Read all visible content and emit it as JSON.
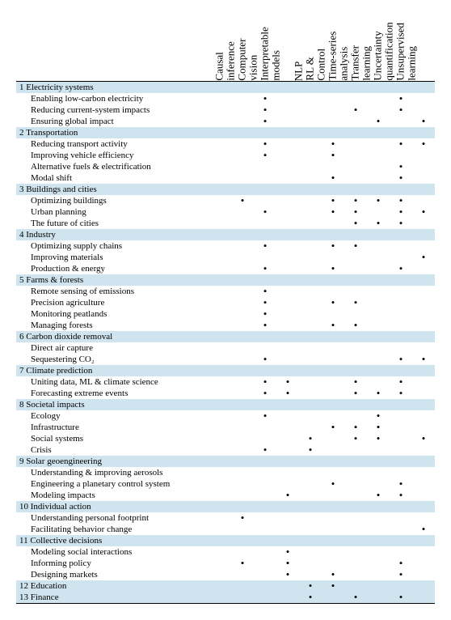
{
  "columns": [
    "Causal inference",
    "Computer vision",
    "Interpretable models",
    "NLP",
    "RL & Control",
    "Time-series analysis",
    "Transfer learning",
    "Uncertainty quantification",
    "Unsupervised learning"
  ],
  "dot_glyph": "•",
  "colors": {
    "section_bg": "#cfe4ef",
    "text": "#000000",
    "rule": "#000000"
  },
  "sections": [
    {
      "num": "1",
      "title": "Electricity systems",
      "section_dots": [
        0,
        0,
        0,
        0,
        0,
        0,
        0,
        0,
        0
      ],
      "rows": [
        {
          "label": "Enabling low-carbon electricity",
          "dots": [
            0,
            1,
            0,
            0,
            0,
            0,
            0,
            1,
            0
          ]
        },
        {
          "label": "Reducing current-system impacts",
          "dots": [
            0,
            1,
            0,
            0,
            0,
            1,
            0,
            1,
            0
          ]
        },
        {
          "label": "Ensuring global impact",
          "dots": [
            0,
            1,
            0,
            0,
            0,
            0,
            1,
            0,
            1
          ]
        }
      ]
    },
    {
      "num": "2",
      "title": "Transportation",
      "section_dots": [
        0,
        0,
        0,
        0,
        0,
        0,
        0,
        0,
        0
      ],
      "rows": [
        {
          "label": "Reducing transport activity",
          "dots": [
            0,
            1,
            0,
            0,
            1,
            0,
            0,
            1,
            1
          ]
        },
        {
          "label": "Improving vehicle efficiency",
          "dots": [
            0,
            1,
            0,
            0,
            1,
            0,
            0,
            0,
            0
          ]
        },
        {
          "label": "Alternative fuels & electrification",
          "dots": [
            0,
            0,
            0,
            0,
            0,
            0,
            0,
            1,
            0
          ]
        },
        {
          "label": "Modal shift",
          "dots": [
            0,
            0,
            0,
            0,
            1,
            0,
            0,
            1,
            0
          ]
        }
      ]
    },
    {
      "num": "3",
      "title": "Buildings and cities",
      "section_dots": [
        0,
        0,
        0,
        0,
        0,
        0,
        0,
        0,
        0
      ],
      "rows": [
        {
          "label": "Optimizing buildings",
          "dots": [
            1,
            0,
            0,
            0,
            1,
            1,
            1,
            1,
            0
          ]
        },
        {
          "label": "Urban planning",
          "dots": [
            0,
            1,
            0,
            0,
            1,
            1,
            0,
            1,
            1
          ]
        },
        {
          "label": "The future of cities",
          "dots": [
            0,
            0,
            0,
            0,
            0,
            1,
            1,
            1,
            0
          ]
        }
      ]
    },
    {
      "num": "4",
      "title": "Industry",
      "section_dots": [
        0,
        0,
        0,
        0,
        0,
        0,
        0,
        0,
        0
      ],
      "rows": [
        {
          "label": "Optimizing supply chains",
          "dots": [
            0,
            1,
            0,
            0,
            1,
            1,
            0,
            0,
            0
          ]
        },
        {
          "label": "Improving materials",
          "dots": [
            0,
            0,
            0,
            0,
            0,
            0,
            0,
            0,
            1
          ]
        },
        {
          "label": "Production & energy",
          "dots": [
            0,
            1,
            0,
            0,
            1,
            0,
            0,
            1,
            0
          ]
        }
      ]
    },
    {
      "num": "5",
      "title": "Farms & forests",
      "section_dots": [
        0,
        0,
        0,
        0,
        0,
        0,
        0,
        0,
        0
      ],
      "rows": [
        {
          "label": "Remote sensing of emissions",
          "dots": [
            0,
            1,
            0,
            0,
            0,
            0,
            0,
            0,
            0
          ]
        },
        {
          "label": "Precision agriculture",
          "dots": [
            0,
            1,
            0,
            0,
            1,
            1,
            0,
            0,
            0
          ]
        },
        {
          "label": "Monitoring peatlands",
          "dots": [
            0,
            1,
            0,
            0,
            0,
            0,
            0,
            0,
            0
          ]
        },
        {
          "label": "Managing forests",
          "dots": [
            0,
            1,
            0,
            0,
            1,
            1,
            0,
            0,
            0
          ]
        }
      ]
    },
    {
      "num": "6",
      "title": "Carbon dioxide removal",
      "section_dots": [
        0,
        0,
        0,
        0,
        0,
        0,
        0,
        0,
        0
      ],
      "rows": [
        {
          "label": "Direct air capture",
          "dots": [
            0,
            0,
            0,
            0,
            0,
            0,
            0,
            0,
            0
          ]
        },
        {
          "label": "Sequestering CO₂",
          "dots": [
            0,
            1,
            0,
            0,
            0,
            0,
            0,
            1,
            1
          ]
        }
      ]
    },
    {
      "num": "7",
      "title": "Climate prediction",
      "section_dots": [
        0,
        0,
        0,
        0,
        0,
        0,
        0,
        0,
        0
      ],
      "rows": [
        {
          "label": "Uniting data, ML & climate science",
          "dots": [
            0,
            1,
            1,
            0,
            0,
            1,
            0,
            1,
            0
          ]
        },
        {
          "label": "Forecasting extreme events",
          "dots": [
            0,
            1,
            1,
            0,
            0,
            1,
            1,
            1,
            0
          ]
        }
      ]
    },
    {
      "num": "8",
      "title": "Societal impacts",
      "section_dots": [
        0,
        0,
        0,
        0,
        0,
        0,
        0,
        0,
        0
      ],
      "rows": [
        {
          "label": "Ecology",
          "dots": [
            0,
            1,
            0,
            0,
            0,
            0,
            1,
            0,
            0
          ]
        },
        {
          "label": "Infrastructure",
          "dots": [
            0,
            0,
            0,
            0,
            1,
            1,
            1,
            0,
            0
          ]
        },
        {
          "label": "Social systems",
          "dots": [
            0,
            0,
            0,
            1,
            0,
            1,
            1,
            0,
            1
          ]
        },
        {
          "label": "Crisis",
          "dots": [
            0,
            1,
            0,
            1,
            0,
            0,
            0,
            0,
            0
          ]
        }
      ]
    },
    {
      "num": "9",
      "title": "Solar geoengineering",
      "section_dots": [
        0,
        0,
        0,
        0,
        0,
        0,
        0,
        0,
        0
      ],
      "rows": [
        {
          "label": "Understanding & improving aerosols",
          "dots": [
            0,
            0,
            0,
            0,
            0,
            0,
            0,
            0,
            0
          ]
        },
        {
          "label": "Engineering a planetary control system",
          "dots": [
            0,
            0,
            0,
            0,
            1,
            0,
            0,
            1,
            0
          ]
        },
        {
          "label": "Modeling impacts",
          "dots": [
            0,
            0,
            1,
            0,
            0,
            0,
            1,
            1,
            0
          ]
        }
      ]
    },
    {
      "num": "10",
      "title": "Individual action",
      "section_dots": [
        0,
        0,
        0,
        0,
        0,
        0,
        0,
        0,
        0
      ],
      "rows": [
        {
          "label": "Understanding personal footprint",
          "dots": [
            1,
            0,
            0,
            0,
            0,
            0,
            0,
            0,
            0
          ]
        },
        {
          "label": "Facilitating behavior change",
          "dots": [
            0,
            0,
            0,
            0,
            0,
            0,
            0,
            0,
            1
          ]
        }
      ]
    },
    {
      "num": "11",
      "title": "Collective decisions",
      "section_dots": [
        0,
        0,
        0,
        0,
        0,
        0,
        0,
        0,
        0
      ],
      "rows": [
        {
          "label": "Modeling social interactions",
          "dots": [
            0,
            0,
            1,
            0,
            0,
            0,
            0,
            0,
            0
          ]
        },
        {
          "label": "Informing policy",
          "dots": [
            1,
            0,
            1,
            0,
            0,
            0,
            0,
            1,
            0
          ]
        },
        {
          "label": "Designing markets",
          "dots": [
            0,
            0,
            1,
            0,
            1,
            0,
            0,
            1,
            0
          ]
        }
      ]
    },
    {
      "num": "12",
      "title": "Education",
      "section_dots": [
        0,
        0,
        0,
        1,
        1,
        0,
        0,
        0,
        0
      ],
      "rows": []
    },
    {
      "num": "13",
      "title": "Finance",
      "section_dots": [
        0,
        0,
        0,
        1,
        0,
        1,
        0,
        1,
        0
      ],
      "rows": []
    }
  ]
}
